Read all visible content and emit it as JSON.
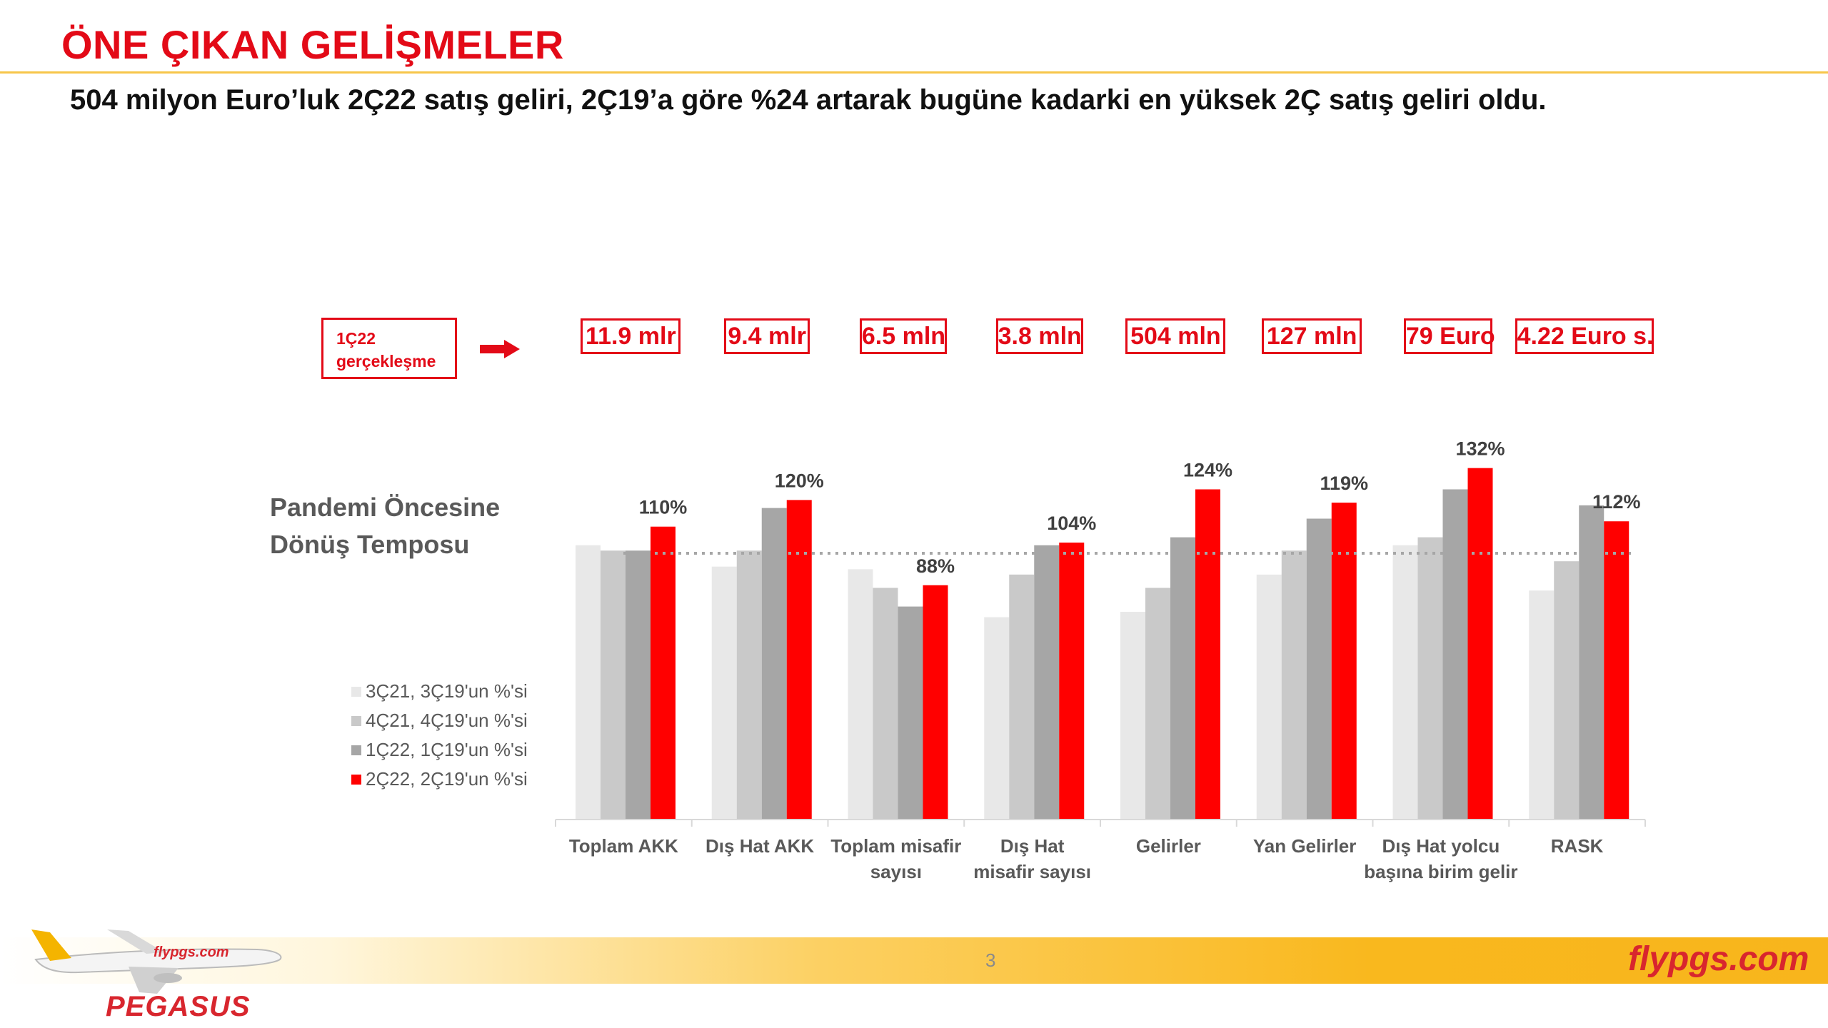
{
  "header": {
    "title": "ÖNE ÇIKAN GELİŞMELER",
    "subtitle": "504 milyon Euro’luk 2Ç22 satış geliri, 2Ç19’a göre %24 artarak bugüne kadarki en yüksek 2Ç satış geliri oldu."
  },
  "realization": {
    "label_line1": "1Ç22",
    "label_line2": "gerçekleşme",
    "values": [
      "11.9 mlr",
      "9.4 mlr",
      "6.5 mln",
      "3.8 mln",
      "504 mln",
      "127 mln",
      "79 Euro",
      "4.22 Euro s."
    ]
  },
  "side_label": {
    "line1": "Pandemi Öncesine",
    "line2": "Dönüş Temposu"
  },
  "chart_data": {
    "type": "bar",
    "categories": [
      "Toplam AKK",
      "Dış Hat AKK",
      "Toplam misafir sayısı",
      "Dış Hat misafir sayısı",
      "Gelirler",
      "Yan Gelirler",
      "Dış Hat yolcu başına birim gelir",
      "RASK"
    ],
    "category_lines": [
      [
        "Toplam AKK"
      ],
      [
        "Dış Hat AKK"
      ],
      [
        "Toplam misafir",
        "sayısı"
      ],
      [
        "Dış Hat",
        "misafir sayısı"
      ],
      [
        "Gelirler"
      ],
      [
        "Yan Gelirler"
      ],
      [
        "Dış Hat yolcu",
        "başına birim gelir"
      ],
      [
        "RASK"
      ]
    ],
    "series": [
      {
        "name": "3Ç21, 3Ç19'un %'si",
        "values": [
          103,
          95,
          94,
          76,
          78,
          92,
          103,
          86
        ]
      },
      {
        "name": "4Ç21, 4Ç19'un %'si",
        "values": [
          101,
          101,
          87,
          92,
          87,
          101,
          106,
          97
        ]
      },
      {
        "name": "1Ç22, 1Ç19'un %'si",
        "values": [
          101,
          117,
          80,
          103,
          106,
          113,
          124,
          118
        ]
      },
      {
        "name": "2Ç22, 2Ç19'un %'si",
        "values": [
          110,
          120,
          88,
          104,
          124,
          119,
          132,
          112
        ]
      }
    ],
    "data_labels": [
      "110%",
      "120%",
      "88%",
      "104%",
      "124%",
      "119%",
      "132%",
      "112%"
    ],
    "reference_line": 100,
    "ylim": [
      0,
      140
    ],
    "legend_position": "left",
    "colors": [
      "#e8e8e8",
      "#c9c9c9",
      "#a6a6a6",
      "#ff0000"
    ]
  },
  "footer": {
    "page_number": "3",
    "brand_text": "flypgs.com",
    "logo_text": "PEGASUS",
    "plane_livery_text": "flypgs.com"
  }
}
